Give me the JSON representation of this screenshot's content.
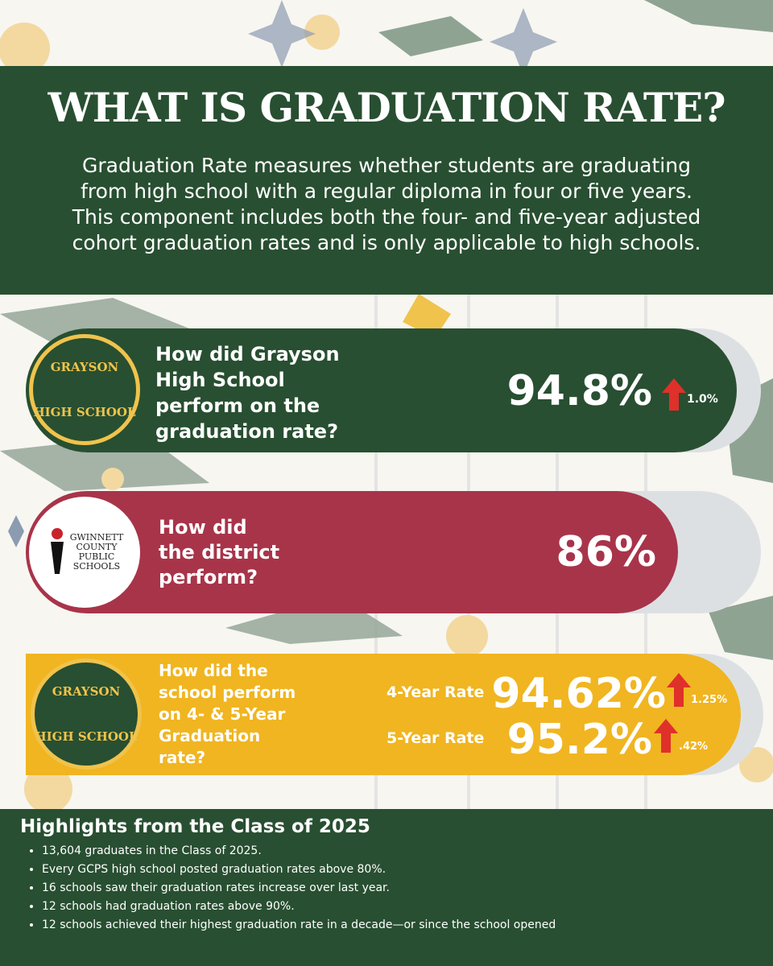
{
  "header": {
    "title": "WHAT IS GRADUATION RATE?",
    "description": [
      "Graduation Rate measures whether students are graduating",
      "from high school with a regular diploma in four or five years.",
      "This component includes both the four- and five-year adjusted",
      "cohort graduation rates and is only applicable to high schools."
    ]
  },
  "cards": [
    {
      "logo": [
        "GRAYSON",
        "HIGH SCHOOL"
      ],
      "question": [
        "How did Grayson",
        "High School",
        "perform on the",
        "graduation rate?"
      ],
      "value": "94.8%",
      "change": "1.0%"
    },
    {
      "logo": [
        "GWINNETT",
        "COUNTY",
        "PUBLIC",
        "SCHOOLS"
      ],
      "question": [
        "How did",
        "the district",
        "perform?"
      ],
      "value": "86%"
    },
    {
      "logo": [
        "GRAYSON",
        "HIGH SCHOOL"
      ],
      "question": [
        "How did the",
        "school perform",
        "on 4- & 5-Year",
        "Graduation",
        "rate?"
      ],
      "rates": [
        {
          "label": "4-Year Rate",
          "value": "94.62%",
          "change": "1.25%"
        },
        {
          "label": "5-Year Rate",
          "value": "95.2%",
          "change": ".42%"
        }
      ]
    }
  ],
  "highlights": {
    "title": "Highlights from the Class of 2025",
    "items": [
      "13,604 graduates in the Class of 2025.",
      "Every GCPS high school posted graduation rates above 80%.",
      "16 schools saw their graduation rates increase over last year.",
      "12 schools had graduation rates above 90%.",
      "12 schools achieved their highest graduation rate in a decade—or since the school opened"
    ]
  }
}
